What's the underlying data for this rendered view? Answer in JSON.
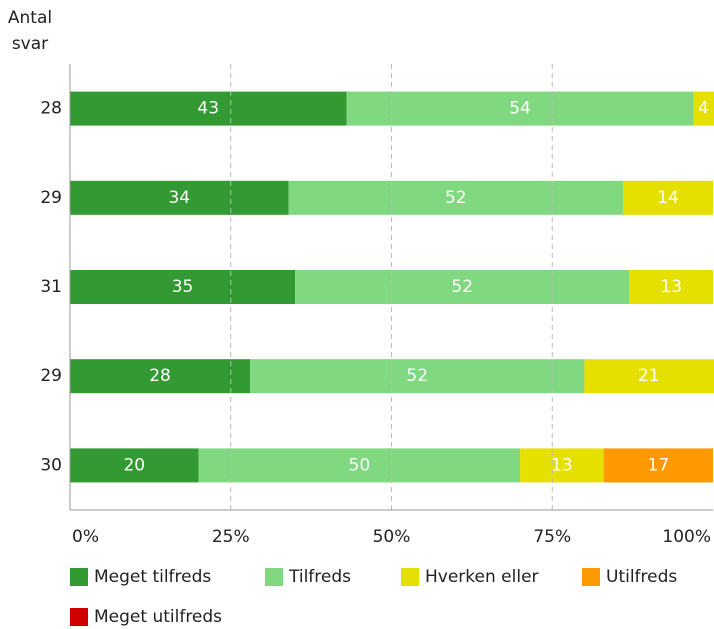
{
  "chart_data": {
    "type": "bar",
    "orientation": "horizontal",
    "stacked": true,
    "ylabel": [
      "Antal",
      "svar"
    ],
    "categories": [
      "28",
      "29",
      "31",
      "29",
      "30"
    ],
    "series": [
      {
        "name": "Meget tilfreds",
        "color": "#339933",
        "values": [
          43,
          34,
          35,
          28,
          20
        ]
      },
      {
        "name": "Tilfreds",
        "color": "#80d980",
        "values": [
          54,
          52,
          52,
          52,
          50
        ]
      },
      {
        "name": "Hverken eller",
        "color": "#e6e000",
        "values": [
          4,
          14,
          13,
          21,
          13
        ]
      },
      {
        "name": "Utilfreds",
        "color": "#ff9900",
        "values": [
          0,
          0,
          0,
          0,
          17
        ]
      },
      {
        "name": "Meget utilfreds",
        "color": "#d00000",
        "values": [
          0,
          0,
          0,
          0,
          0
        ]
      }
    ],
    "xlim": [
      0,
      100
    ],
    "xticks": [
      {
        "value": 0,
        "label": "0%"
      },
      {
        "value": 25,
        "label": "25%"
      },
      {
        "value": 50,
        "label": "50%"
      },
      {
        "value": 75,
        "label": "75%"
      },
      {
        "value": 100,
        "label": "100%"
      }
    ],
    "grid": true
  }
}
